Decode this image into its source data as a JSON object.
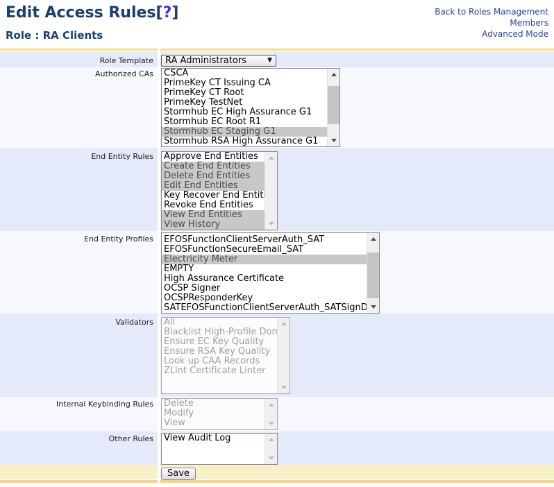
{
  "colors": {
    "title_navy": "#1b3f70",
    "help_link": "#4433cc",
    "nav_link": "#2d3ea0",
    "row_lavender": "#e5eafa",
    "row_light": "#f7f8fd",
    "band_cream": "#faf0c8",
    "band_bottom_orange": "#f5d38a",
    "selected_option_bg": "#c8c8c8"
  },
  "header": {
    "title": "Edit Access Rules",
    "help_open": "[",
    "help_mark": "?",
    "help_close": "]",
    "subtitle": "Role : RA Clients",
    "links": {
      "back": "Back to Roles Management",
      "members": "Members",
      "advanced": "Advanced Mode"
    }
  },
  "form": {
    "labels": {
      "role_template": "Role Template",
      "authorized_cas": "Authorized CAs",
      "end_entity_rules": "End Entity Rules",
      "end_entity_profiles": "End Entity Profiles",
      "validators": "Validators",
      "internal_keybinding_rules": "Internal Keybinding Rules",
      "other_rules": "Other Rules"
    },
    "role_template_value": "RA Administrators",
    "dropdown_arrow": "▼",
    "save_label": "Save",
    "lists": {
      "authorized_cas": [
        {
          "label": "CSCA"
        },
        {
          "label": "PrimeKey CT Issuing CA"
        },
        {
          "label": "PrimeKey CT Root"
        },
        {
          "label": "PrimeKey TestNet"
        },
        {
          "label": "Stormhub EC High Assurance G1"
        },
        {
          "label": "Stormhub EC Root R1"
        },
        {
          "label": "Stormhub EC Staging G1",
          "selected": true
        },
        {
          "label": "Stormhub RSA High Assurance G1"
        }
      ],
      "end_entity_rules": [
        {
          "label": "Approve End Entities"
        },
        {
          "label": "Create End Entities",
          "selected": true
        },
        {
          "label": "Delete End Entities",
          "selected": true
        },
        {
          "label": "Edit End Entities",
          "selected": true
        },
        {
          "label": "Key Recover End Entities"
        },
        {
          "label": "Revoke End Entities"
        },
        {
          "label": "View End Entities",
          "selected": true
        },
        {
          "label": "View History",
          "selected": true
        }
      ],
      "end_entity_profiles": [
        {
          "label": "EFOSFunctionClientServerAuth_SAT"
        },
        {
          "label": "EFOSFunctionSecureEmail_SAT"
        },
        {
          "label": "Electricity Meter",
          "selected": true
        },
        {
          "label": "EMPTY"
        },
        {
          "label": "High Assurance Certificate"
        },
        {
          "label": "OCSP Signer"
        },
        {
          "label": "OCSPResponderKey"
        },
        {
          "label": "SATEFOSFunctionClientServerAuth_SATSignDVServer"
        }
      ],
      "validators": [
        {
          "label": "All"
        },
        {
          "label": "Blacklist High-Profile Domains"
        },
        {
          "label": "Ensure EC Key Quality"
        },
        {
          "label": "Ensure RSA Key Quality"
        },
        {
          "label": "Look up CAA Records"
        },
        {
          "label": "ZLint Certificate Linter"
        }
      ],
      "internal_keybinding_rules": [
        {
          "label": "Delete"
        },
        {
          "label": "Modify"
        },
        {
          "label": "View"
        }
      ],
      "other_rules": [
        {
          "label": "View Audit Log"
        }
      ]
    }
  }
}
